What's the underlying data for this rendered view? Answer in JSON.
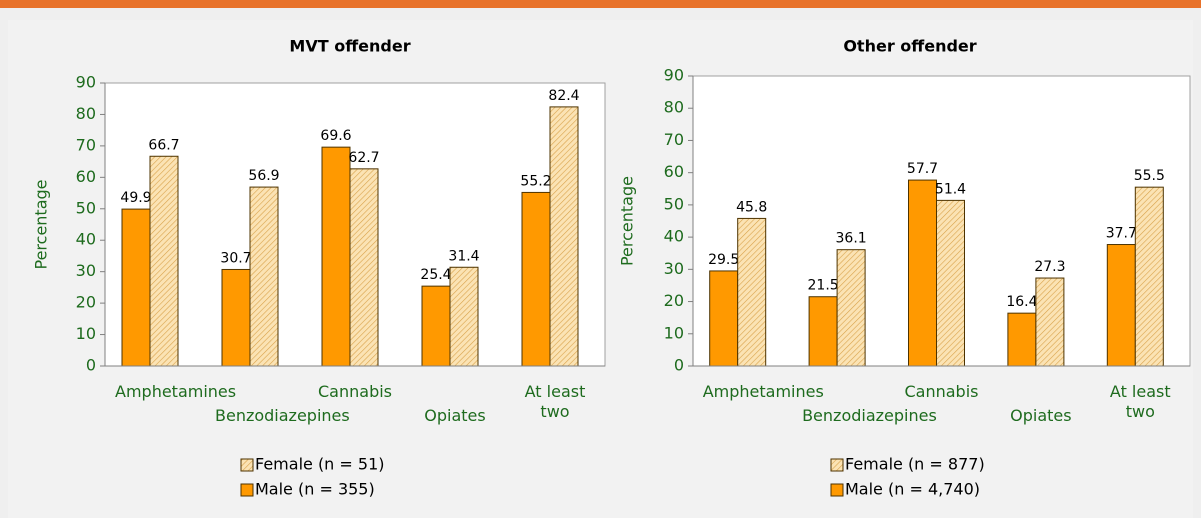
{
  "chart_data": [
    {
      "type": "bar",
      "title": "MVT offender",
      "y_label": "Percentage",
      "categories": [
        "Amphetamines",
        "Benzodiazepines",
        "Cannabis",
        "Opiates",
        "At least two"
      ],
      "series": [
        {
          "name": "Male (n = 355)",
          "color": "#ff9900",
          "values": [
            49.9,
            30.7,
            69.6,
            25.4,
            55.2
          ]
        },
        {
          "name": "Female (n = 51)",
          "color": "#fbe3b4",
          "hatch": true,
          "values": [
            66.7,
            56.9,
            62.7,
            31.4,
            82.4
          ]
        }
      ],
      "ylim": [
        0,
        90
      ],
      "yticks": [
        0,
        10,
        20,
        30,
        40,
        50,
        60,
        70,
        80,
        90
      ],
      "grid": false
    },
    {
      "type": "bar",
      "title": "Other offender",
      "y_label": "Percentage",
      "categories": [
        "Amphetamines",
        "Benzodiazepines",
        "Cannabis",
        "Opiates",
        "At least two"
      ],
      "series": [
        {
          "name": "Male (n = 4,740)",
          "color": "#ff9900",
          "values": [
            29.5,
            21.5,
            57.7,
            16.4,
            37.7
          ]
        },
        {
          "name": "Female (n = 877)",
          "color": "#fbe3b4",
          "hatch": true,
          "values": [
            45.8,
            36.1,
            51.4,
            27.3,
            55.5
          ]
        }
      ],
      "ylim": [
        0,
        90
      ],
      "yticks": [
        0,
        10,
        20,
        30,
        40,
        50,
        60,
        70,
        80,
        90
      ],
      "grid": false
    }
  ]
}
